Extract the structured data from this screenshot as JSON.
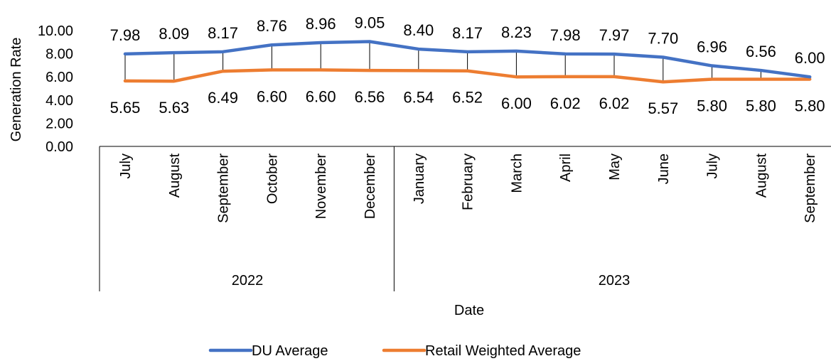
{
  "chart_data": {
    "type": "line",
    "title": "",
    "xlabel": "Date",
    "ylabel": "Generation Rate",
    "ylim": [
      0,
      10
    ],
    "yticks": [
      "0.00",
      "2.00",
      "4.00",
      "6.00",
      "8.00",
      "10.00"
    ],
    "categories": [
      "July",
      "August",
      "September",
      "October",
      "November",
      "December",
      "January",
      "February",
      "March",
      "April",
      "May",
      "June",
      "July",
      "August",
      "September"
    ],
    "groups": [
      {
        "label": "2022",
        "count": 6
      },
      {
        "label": "2023",
        "count": 9
      }
    ],
    "series": [
      {
        "name": "DU Average",
        "color": "#4472C4",
        "values": [
          7.98,
          8.09,
          8.17,
          8.76,
          8.96,
          9.05,
          8.4,
          8.17,
          8.23,
          7.98,
          7.97,
          7.7,
          6.96,
          6.56,
          6.0
        ],
        "labels": [
          "7.98",
          "8.09",
          "8.17",
          "8.76",
          "8.96",
          "9.05",
          "8.40",
          "8.17",
          "8.23",
          "7.98",
          "7.97",
          "7.70",
          "6.96",
          "6.56",
          "6.00"
        ]
      },
      {
        "name": "Retail Weighted Average",
        "color": "#ED7D31",
        "values": [
          5.65,
          5.63,
          6.49,
          6.6,
          6.6,
          6.56,
          6.54,
          6.52,
          6.0,
          6.02,
          6.02,
          5.57,
          5.8,
          5.8,
          5.8
        ],
        "labels": [
          "5.65",
          "5.63",
          "6.49",
          "6.60",
          "6.60",
          "6.56",
          "6.54",
          "6.52",
          "6.00",
          "6.02",
          "6.02",
          "5.57",
          "5.80",
          "5.80",
          "5.80"
        ]
      }
    ],
    "high_low_lines": true,
    "grid": false,
    "legend": "bottom"
  }
}
